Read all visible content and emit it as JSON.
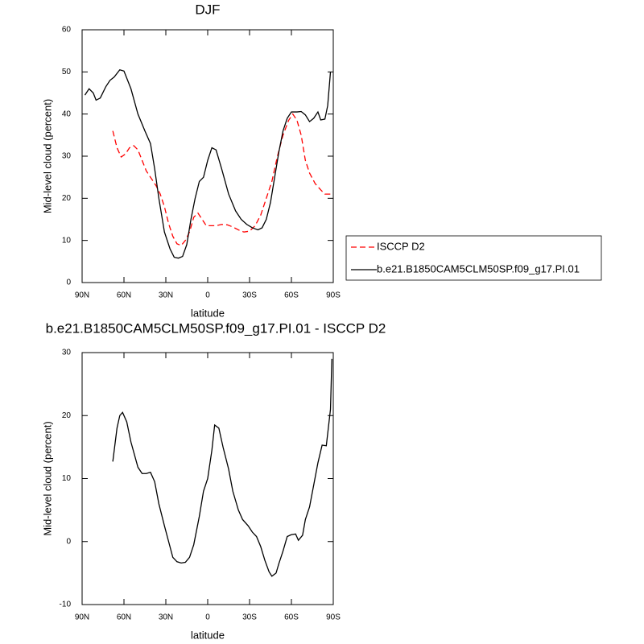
{
  "chart_data": [
    {
      "type": "line",
      "title": "DJF",
      "xlabel": "latitude",
      "ylabel": "Mid-level cloud (percent)",
      "xlim": [
        90,
        -90
      ],
      "ylim": [
        0,
        60
      ],
      "xticks": [
        {
          "value": 90,
          "label": "90N"
        },
        {
          "value": 60,
          "label": "60N"
        },
        {
          "value": 30,
          "label": "30N"
        },
        0,
        {
          "value": -30,
          "label": "30S"
        },
        {
          "value": -60,
          "label": "60S"
        },
        {
          "value": -90,
          "label": "90S"
        }
      ],
      "yticks": [
        0,
        10,
        20,
        30,
        40,
        50,
        60
      ],
      "legend": true,
      "series": [
        {
          "name": "ISCCP D2",
          "color": "#ff0000",
          "dashed": true,
          "x": [
            68,
            65,
            62,
            59,
            56,
            53,
            50,
            47,
            44,
            40,
            37,
            34,
            31,
            28,
            25,
            22,
            19,
            16,
            13,
            10,
            7,
            4,
            1,
            -3,
            -6,
            -10,
            -14,
            -18,
            -22,
            -26,
            -30,
            -34,
            -38,
            -42,
            -46,
            -50,
            -54,
            -58,
            -61,
            -64,
            -67,
            -70,
            -73,
            -77,
            -81,
            -84,
            -88
          ],
          "values": [
            36,
            32,
            29.8,
            30.5,
            32,
            32.5,
            31.5,
            29,
            26.5,
            24.5,
            23,
            21,
            18,
            14,
            11,
            9.2,
            8.8,
            10,
            12,
            15.5,
            16.5,
            15,
            13.5,
            13.5,
            13.5,
            13.8,
            13.7,
            13.2,
            12.5,
            12,
            12.2,
            13.5,
            16,
            20,
            24,
            30,
            35,
            38.5,
            40,
            38.5,
            35,
            29,
            26,
            23.5,
            22,
            21,
            21
          ]
        },
        {
          "name": "b.e21.B1850CAM5CLM50SP.f09_g17.PI.01",
          "color": "#000000",
          "dashed": false,
          "x": [
            88,
            85,
            82,
            80,
            77,
            73,
            70,
            67,
            63,
            60,
            55,
            50,
            45,
            41,
            38,
            35,
            31,
            27,
            24,
            21,
            18,
            15,
            12,
            9,
            6,
            3,
            0,
            -3,
            -6,
            -10,
            -15,
            -20,
            -24,
            -28,
            -32,
            -36,
            -39,
            -42,
            -45,
            -48,
            -51,
            -54,
            -57,
            -60,
            -64,
            -67,
            -70,
            -73,
            -76,
            -79,
            -81,
            -84,
            -86,
            -88
          ],
          "values": [
            44.5,
            46,
            45,
            43.3,
            43.8,
            46.5,
            48,
            48.8,
            50.5,
            50.2,
            46,
            40,
            36,
            33,
            27,
            20,
            12,
            8,
            6,
            5.8,
            6.2,
            9,
            15,
            20,
            24,
            25,
            29,
            32,
            31.5,
            27,
            21,
            17,
            15,
            13.8,
            13,
            12.5,
            13,
            15,
            19,
            25,
            31,
            36,
            39,
            40.5,
            40.5,
            40.6,
            39.8,
            38.2,
            39,
            40.5,
            38.6,
            38.8,
            42,
            50
          ]
        }
      ]
    },
    {
      "type": "line",
      "title": "b.e21.B1850CAM5CLM50SP.f09_g17.PI.01 - ISCCP D2",
      "xlabel": "latitude",
      "ylabel": "Mid-level cloud (percent)",
      "xlim": [
        90,
        -90
      ],
      "ylim": [
        -10,
        30
      ],
      "xticks": [
        {
          "value": 90,
          "label": "90N"
        },
        {
          "value": 60,
          "label": "60N"
        },
        {
          "value": 30,
          "label": "30N"
        },
        0,
        {
          "value": -30,
          "label": "30S"
        },
        {
          "value": -60,
          "label": "60S"
        },
        {
          "value": -90,
          "label": "90S"
        }
      ],
      "yticks": [
        -10,
        0,
        10,
        20,
        30
      ],
      "legend": false,
      "series": [
        {
          "color": "#000000",
          "dashed": false,
          "x": [
            68,
            65,
            63,
            61,
            58,
            55,
            50,
            47,
            44,
            41,
            38,
            35,
            31,
            28,
            25,
            22,
            19,
            16,
            13,
            10,
            6,
            3,
            0,
            -3,
            -5,
            -8,
            -11,
            -15,
            -18,
            -22,
            -25,
            -29,
            -32,
            -35,
            -38,
            -41,
            -44,
            -46,
            -49,
            -51,
            -54,
            -57,
            -60,
            -63,
            -65,
            -68,
            -70,
            -73,
            -76,
            -79,
            -82,
            -85,
            -88,
            -89
          ],
          "values": [
            12.7,
            18,
            20,
            20.5,
            19,
            15.8,
            11.8,
            10.8,
            10.8,
            11,
            9.5,
            6,
            2.5,
            0,
            -2.5,
            -3.2,
            -3.4,
            -3.3,
            -2.5,
            -0.5,
            4,
            8,
            10,
            14.5,
            18.5,
            18,
            15,
            11.5,
            8,
            5,
            3.5,
            2.5,
            1.5,
            0.8,
            -0.8,
            -3,
            -4.8,
            -5.5,
            -5,
            -3.5,
            -1.5,
            0.8,
            1.1,
            1.2,
            0.2,
            1,
            3.5,
            5.5,
            9,
            12.5,
            15.3,
            15.2,
            21,
            29
          ]
        }
      ]
    }
  ]
}
